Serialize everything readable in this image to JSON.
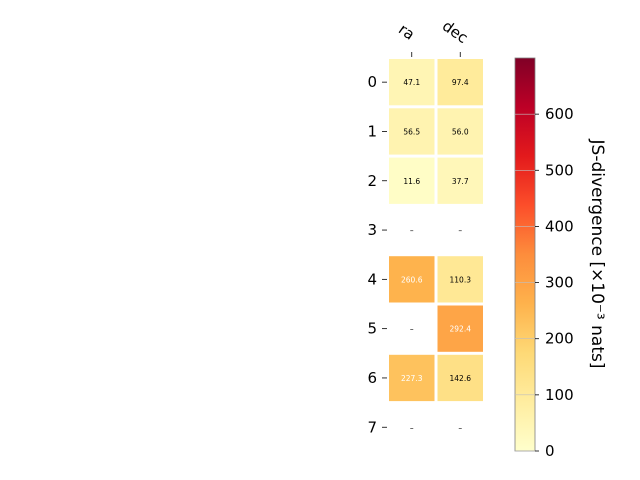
{
  "chart_data": {
    "type": "heatmap",
    "columns": [
      "ra",
      "dec"
    ],
    "rows": [
      "0",
      "1",
      "2",
      "3",
      "4",
      "5",
      "6",
      "7"
    ],
    "values": [
      [
        47.1,
        97.4
      ],
      [
        56.5,
        56.0
      ],
      [
        11.6,
        37.7
      ],
      [
        null,
        null
      ],
      [
        260.6,
        110.3
      ],
      [
        null,
        292.4
      ],
      [
        227.3,
        142.6
      ],
      [
        null,
        null
      ]
    ],
    "missing_label": "–",
    "colorbar": {
      "label": "JS-divergence [×10⁻³ nats]",
      "range": [
        0,
        700
      ],
      "ticks": [
        0,
        100,
        200,
        300,
        400,
        500,
        600
      ],
      "colormap": "YlOrRd"
    }
  }
}
